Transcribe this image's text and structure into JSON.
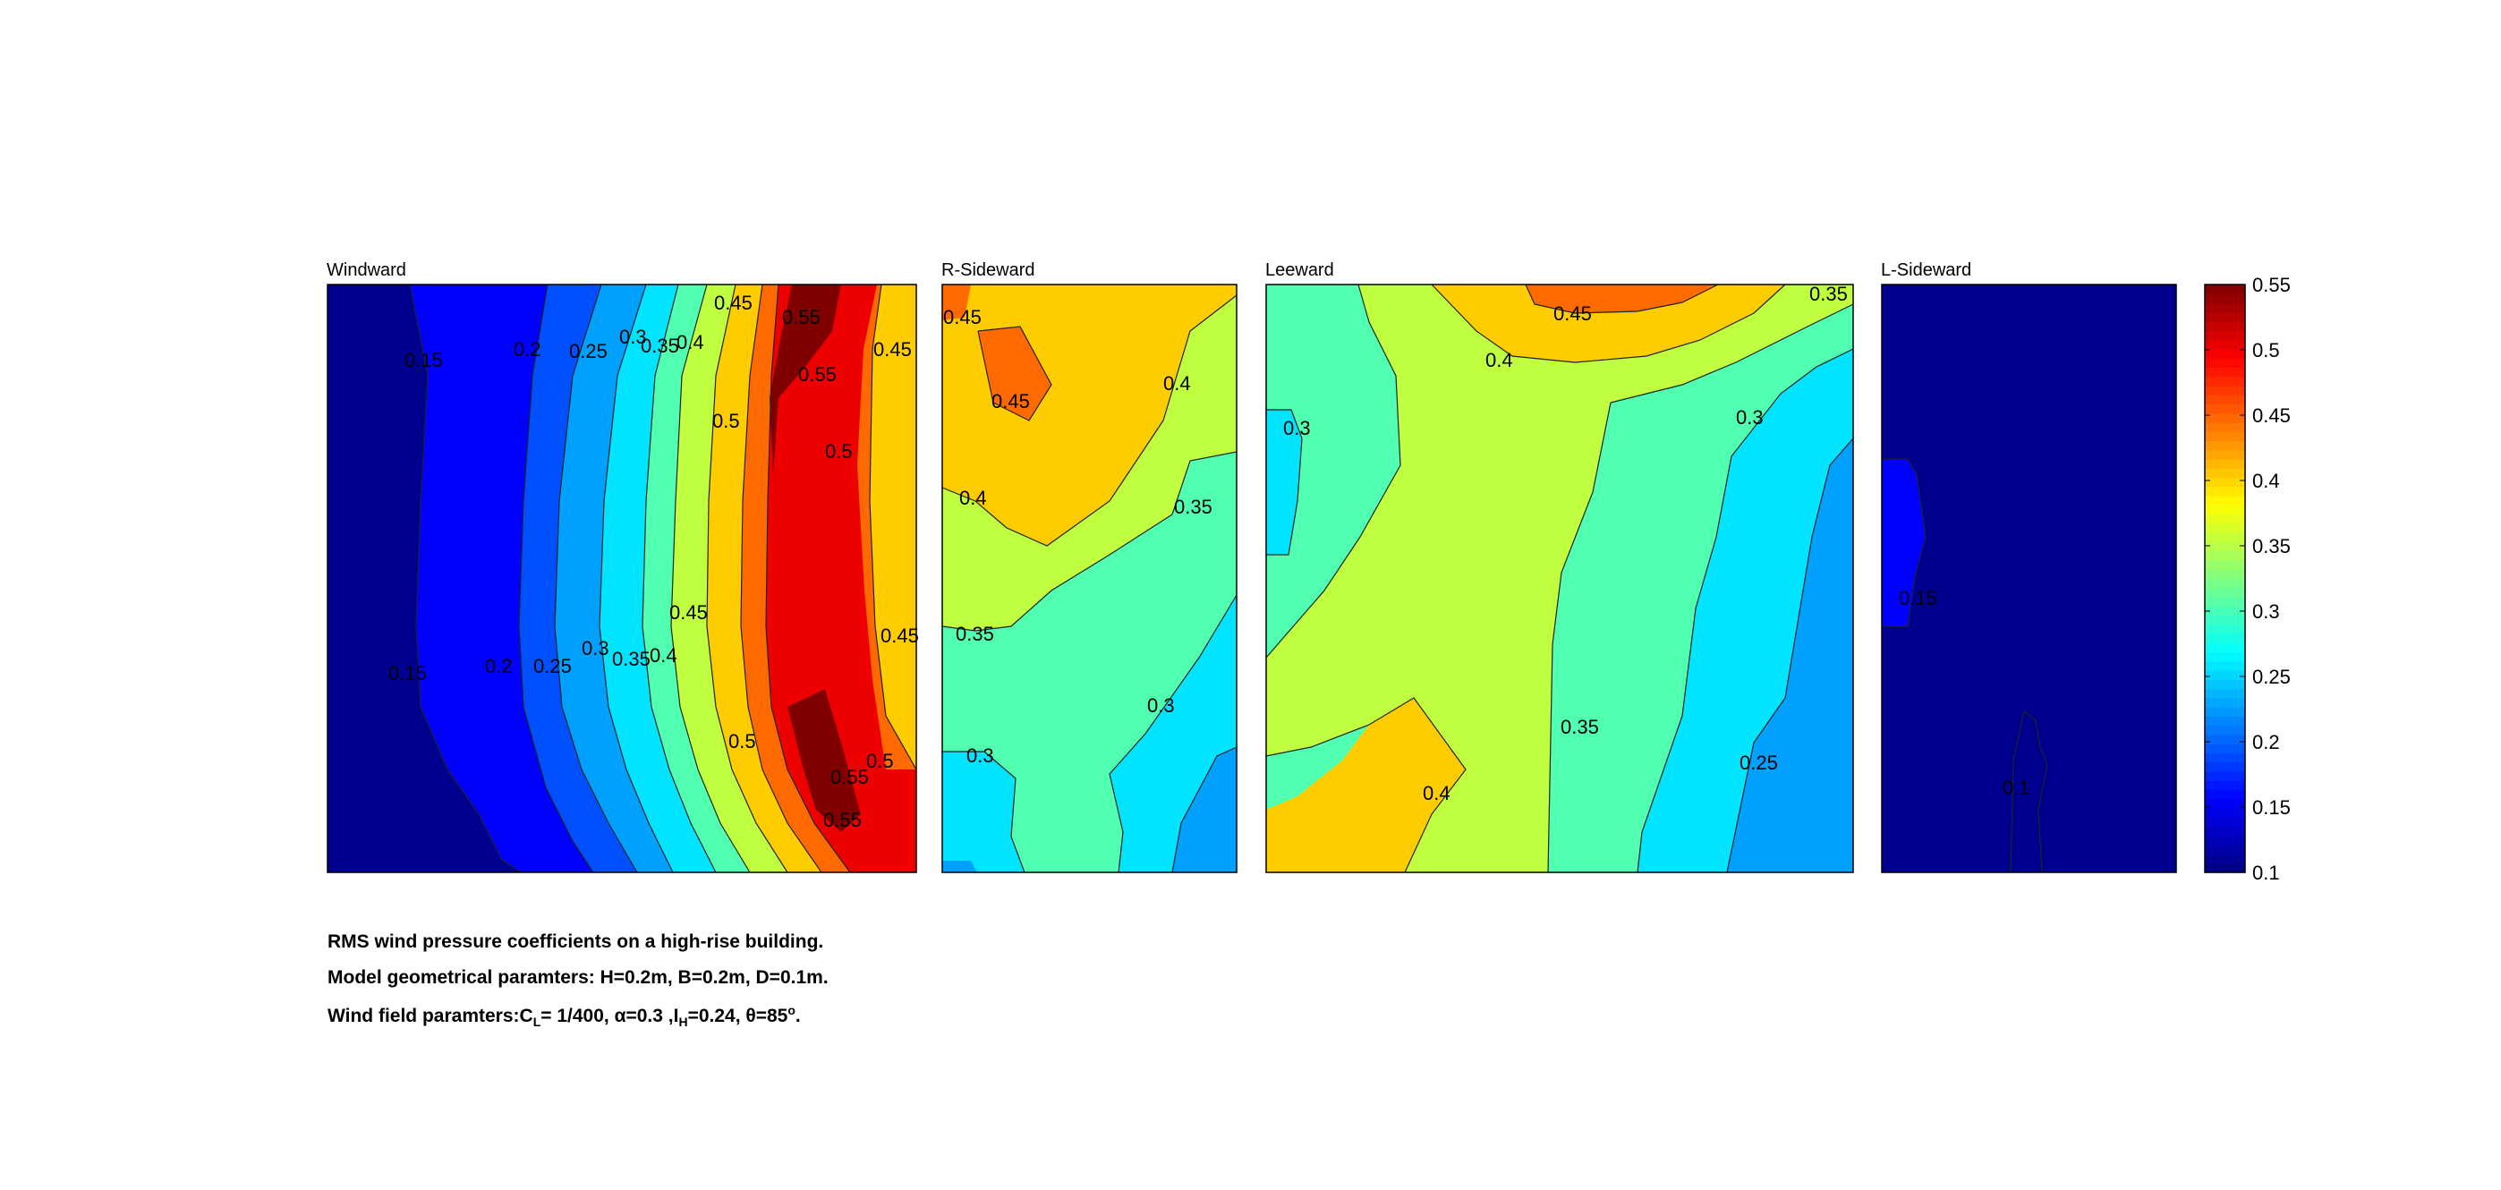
{
  "chart_data": {
    "type": "heatmap",
    "subtype": "filled-contour",
    "panels": [
      {
        "title": "Windward",
        "contour_labels": [
          "0.15",
          "0.2",
          "0.25",
          "0.3",
          "0.35",
          "0.4",
          "0.45",
          "0.5",
          "0.55",
          "0.55",
          "0.5",
          "0.45",
          "0.15",
          "0.2",
          "0.25",
          "0.3",
          "0.35",
          "0.4",
          "0.45",
          "0.5",
          "0.55",
          "0.55",
          "0.5",
          "0.45"
        ],
        "x_profile_levels": [
          0.1,
          0.1,
          0.1,
          0.15,
          0.15,
          0.2,
          0.25,
          0.3,
          0.35,
          0.4,
          0.45,
          0.5,
          0.5,
          0.5,
          0.5,
          0.45,
          0.4
        ]
      },
      {
        "title": "R-Sideward",
        "contour_labels": [
          "0.45",
          "0.45",
          "0.4",
          "0.4",
          "0.35",
          "0.35",
          "0.3",
          "0.3"
        ]
      },
      {
        "title": "Leeward",
        "contour_labels": [
          "0.45",
          "0.35",
          "0.4",
          "0.3",
          "0.3",
          "0.35",
          "0.4",
          "0.25"
        ]
      },
      {
        "title": "L-Sideward",
        "contour_labels": [
          "0.15",
          "0.1"
        ]
      }
    ],
    "colorbar": {
      "colormap": "jet",
      "range": [
        0.1,
        0.55
      ],
      "ticks": [
        "0.55",
        "0.5",
        "0.45",
        "0.4",
        "0.35",
        "0.3",
        "0.25",
        "0.2",
        "0.15",
        "0.1"
      ]
    },
    "levels": [
      0.1,
      0.15,
      0.2,
      0.25,
      0.3,
      0.35,
      0.4,
      0.45,
      0.5,
      0.55
    ],
    "level_colors": [
      "#00008f",
      "#0000ff",
      "#0050ff",
      "#00a0ff",
      "#00e4ff",
      "#50ffaf",
      "#bfff40",
      "#ffcc00",
      "#ff6a00",
      "#ee0000",
      "#800000"
    ]
  },
  "caption": {
    "line1": "RMS wind pressure coefficients on a high-rise building.",
    "line2": "Model geometrical paramters: H=0.2m, B=0.2m, D=0.1m.",
    "line3_prefix": "Wind field paramters:C",
    "line3_sub1": "L",
    "line3_mid1": "= 1/400, α=0.3 ,I",
    "line3_sub2": "H",
    "line3_mid2": "=0.24, θ=85",
    "line3_sup": "o",
    "line3_end": "."
  }
}
